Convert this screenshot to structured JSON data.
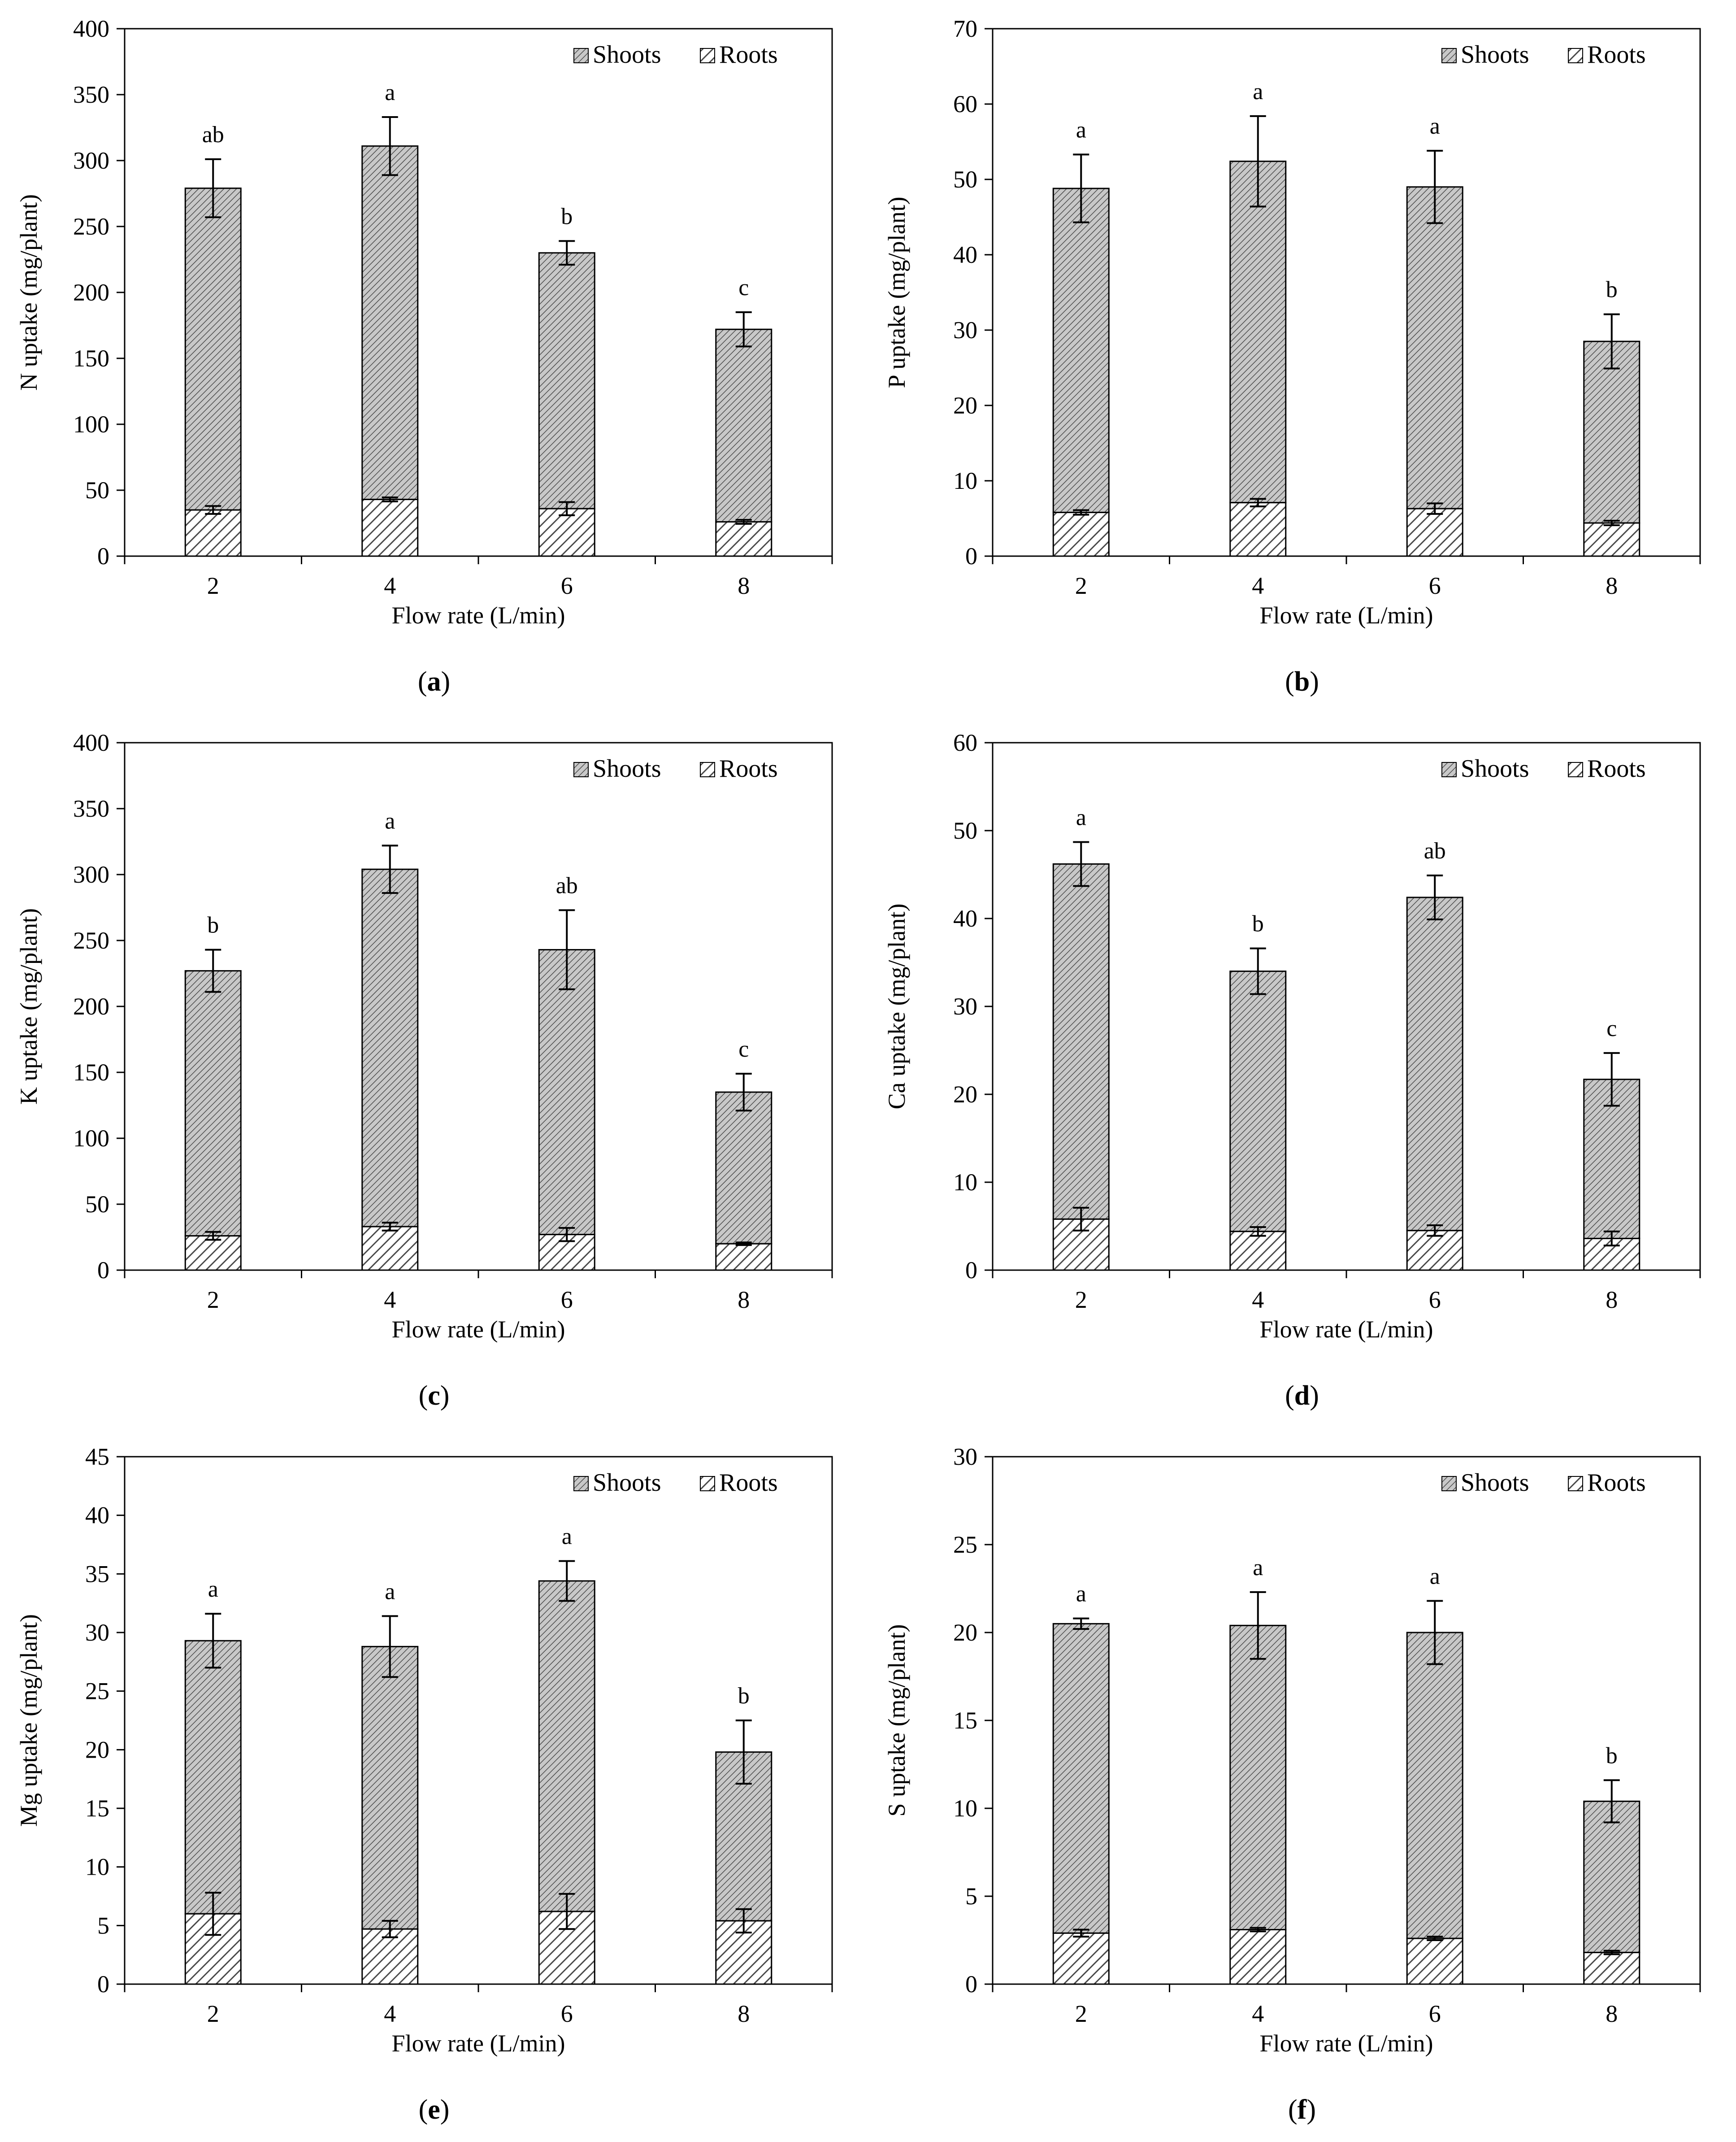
{
  "legend": {
    "shoots": "Shoots",
    "roots": "Roots"
  },
  "colors": {
    "shoots_fill": "#c8c8c8",
    "roots_fill": "#ffffff",
    "hatch": "#4a4a4a",
    "axis": "#000000"
  },
  "chart_data": [
    {
      "type": "bar",
      "stacked": true,
      "panel_label": "a",
      "ylabel": "N uptake (mg/plant)",
      "xlabel": "Flow rate (L/min)",
      "categories": [
        "2",
        "4",
        "6",
        "8"
      ],
      "ylim": [
        0,
        400
      ],
      "yticks": [
        0,
        50,
        100,
        150,
        200,
        250,
        300,
        350,
        400
      ],
      "series": [
        {
          "name": "Roots",
          "values": [
            35,
            43,
            36,
            26
          ],
          "errors": [
            3,
            1.5,
            5,
            1.5
          ]
        },
        {
          "name": "Shoots",
          "values": [
            244,
            268,
            194,
            146
          ],
          "errors": [
            22,
            22,
            9,
            13
          ]
        }
      ],
      "totals": [
        279,
        311,
        230,
        172
      ],
      "significance": [
        "ab",
        "a",
        "b",
        "c"
      ],
      "legend_position": "top-right"
    },
    {
      "type": "bar",
      "stacked": true,
      "panel_label": "b",
      "ylabel": "P uptake (mg/plant)",
      "xlabel": "Flow rate (L/min)",
      "categories": [
        "2",
        "4",
        "6",
        "8"
      ],
      "ylim": [
        0,
        70
      ],
      "yticks": [
        0,
        10,
        20,
        30,
        40,
        50,
        60,
        70
      ],
      "series": [
        {
          "name": "Roots",
          "values": [
            5.8,
            7.1,
            6.3,
            4.4
          ],
          "errors": [
            0.3,
            0.5,
            0.7,
            0.3
          ]
        },
        {
          "name": "Shoots",
          "values": [
            43.0,
            45.3,
            42.7,
            24.1
          ],
          "errors": [
            4.5,
            6.0,
            4.8,
            3.6
          ]
        }
      ],
      "totals": [
        48.8,
        52.4,
        49.0,
        28.5
      ],
      "significance": [
        "a",
        "a",
        "a",
        "b"
      ],
      "legend_position": "top-right"
    },
    {
      "type": "bar",
      "stacked": true,
      "panel_label": "c",
      "ylabel": "K uptake (mg/plant)",
      "xlabel": "Flow rate (L/min)",
      "categories": [
        "2",
        "4",
        "6",
        "8"
      ],
      "ylim": [
        0,
        400
      ],
      "yticks": [
        0,
        50,
        100,
        150,
        200,
        250,
        300,
        350,
        400
      ],
      "series": [
        {
          "name": "Roots",
          "values": [
            26,
            33,
            27,
            20
          ],
          "errors": [
            3,
            3,
            5,
            1
          ]
        },
        {
          "name": "Shoots",
          "values": [
            201,
            271,
            216,
            115
          ],
          "errors": [
            16,
            18,
            30,
            14
          ]
        }
      ],
      "totals": [
        227,
        304,
        243,
        135
      ],
      "significance": [
        "b",
        "a",
        "ab",
        "c"
      ],
      "legend_position": "top-right"
    },
    {
      "type": "bar",
      "stacked": true,
      "panel_label": "d",
      "ylabel": "Ca uptake (mg/plant)",
      "xlabel": "Flow rate (L/min)",
      "categories": [
        "2",
        "4",
        "6",
        "8"
      ],
      "ylim": [
        0,
        60
      ],
      "yticks": [
        0,
        10,
        20,
        30,
        40,
        50,
        60
      ],
      "series": [
        {
          "name": "Roots",
          "values": [
            5.8,
            4.4,
            4.5,
            3.6
          ],
          "errors": [
            1.3,
            0.5,
            0.6,
            0.8
          ]
        },
        {
          "name": "Shoots",
          "values": [
            40.4,
            29.6,
            37.9,
            18.1
          ],
          "errors": [
            2.5,
            2.6,
            2.5,
            3.0
          ]
        }
      ],
      "totals": [
        46.2,
        34.0,
        42.4,
        21.7
      ],
      "significance": [
        "a",
        "b",
        "ab",
        "c"
      ],
      "legend_position": "top-right"
    },
    {
      "type": "bar",
      "stacked": true,
      "panel_label": "e",
      "ylabel": "Mg uptake (mg/plant)",
      "xlabel": "Flow rate (L/min)",
      "categories": [
        "2",
        "4",
        "6",
        "8"
      ],
      "ylim": [
        0,
        45
      ],
      "yticks": [
        0,
        5,
        10,
        15,
        20,
        25,
        30,
        35,
        40,
        45
      ],
      "series": [
        {
          "name": "Roots",
          "values": [
            6.0,
            4.7,
            6.2,
            5.4
          ],
          "errors": [
            1.8,
            0.7,
            1.5,
            1.0
          ]
        },
        {
          "name": "Shoots",
          "values": [
            23.3,
            24.1,
            28.2,
            14.4
          ],
          "errors": [
            2.3,
            2.6,
            1.7,
            2.7
          ]
        }
      ],
      "totals": [
        29.3,
        28.8,
        34.4,
        19.8
      ],
      "significance": [
        "a",
        "a",
        "a",
        "b"
      ],
      "legend_position": "top-right"
    },
    {
      "type": "bar",
      "stacked": true,
      "panel_label": "f",
      "ylabel": "S uptake (mg/plant)",
      "xlabel": "Flow rate (L/min)",
      "categories": [
        "2",
        "4",
        "6",
        "8"
      ],
      "ylim": [
        0,
        30
      ],
      "yticks": [
        0,
        5,
        10,
        15,
        20,
        25,
        30
      ],
      "series": [
        {
          "name": "Roots",
          "values": [
            2.9,
            3.1,
            2.6,
            1.8
          ],
          "errors": [
            0.2,
            0.1,
            0.1,
            0.1
          ]
        },
        {
          "name": "Shoots",
          "values": [
            17.6,
            17.3,
            17.4,
            8.6
          ],
          "errors": [
            0.3,
            1.9,
            1.8,
            1.2
          ]
        }
      ],
      "totals": [
        20.5,
        20.4,
        20.0,
        10.4
      ],
      "significance": [
        "a",
        "a",
        "a",
        "b"
      ],
      "legend_position": "top-right"
    }
  ]
}
